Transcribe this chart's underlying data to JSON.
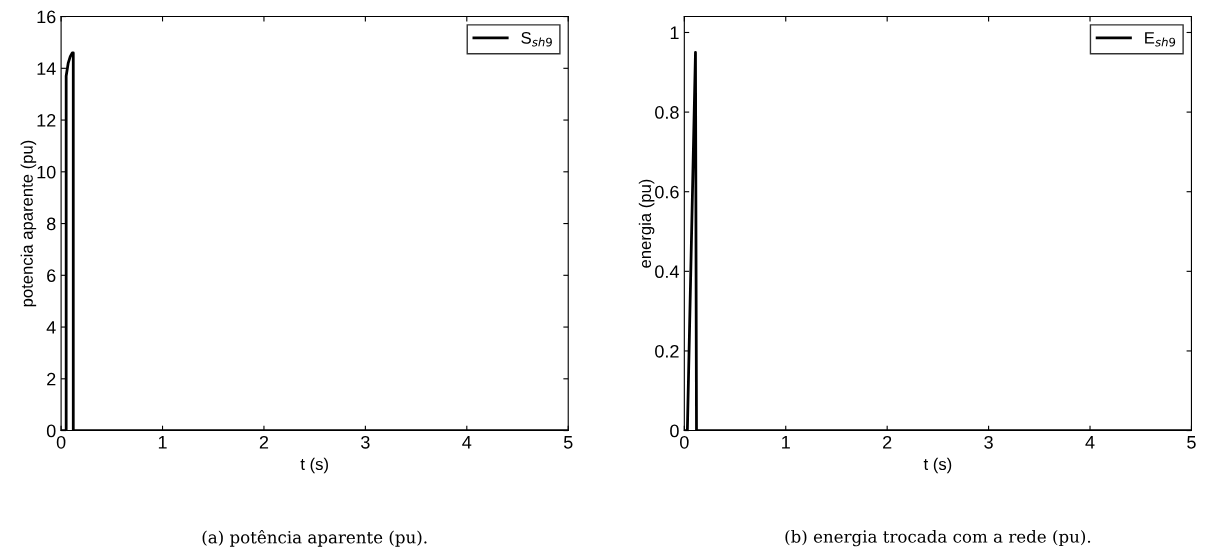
{
  "chart_data": [
    {
      "type": "line",
      "xlabel": "t (s)",
      "ylabel": "potencia aparente (pu)",
      "annotations": [
        "(a) potência aparente (pu)."
      ],
      "series": [
        {
          "name": "S$_{sh9}$",
          "color": "#000000",
          "x": [
            0,
            0.05,
            0.05,
            0.07,
            0.09,
            0.11,
            0.12,
            0.12,
            5
          ],
          "values": [
            0,
            0,
            13.7,
            14.2,
            14.45,
            14.6,
            14.6,
            0,
            0
          ]
        }
      ],
      "xlim": [
        0,
        5
      ],
      "xticks": [
        0,
        1,
        2,
        3,
        4,
        5
      ],
      "ylim": [
        0,
        16
      ],
      "yticks": [
        0,
        2,
        4,
        6,
        8,
        10,
        12,
        14,
        16
      ],
      "legend": "top right",
      "grid": false
    },
    {
      "type": "line",
      "xlabel": "t (s)",
      "ylabel": "energia (pu)",
      "annotations": [
        "(b) energia trocada com a rede (pu)."
      ],
      "series": [
        {
          "name": "E$_{sh9}$",
          "color": "#000000",
          "x": [
            0,
            0.03,
            0.11,
            0.12,
            5
          ],
          "values": [
            0,
            0,
            0.95,
            0,
            0
          ]
        }
      ],
      "xlim": [
        0,
        5
      ],
      "xticks": [
        0,
        1,
        2,
        3,
        4,
        5
      ],
      "ylim": [
        0,
        1.04
      ],
      "yticks": [
        0,
        0.2,
        0.4,
        0.6,
        0.8,
        1
      ],
      "legend": "top right",
      "grid": false
    }
  ]
}
